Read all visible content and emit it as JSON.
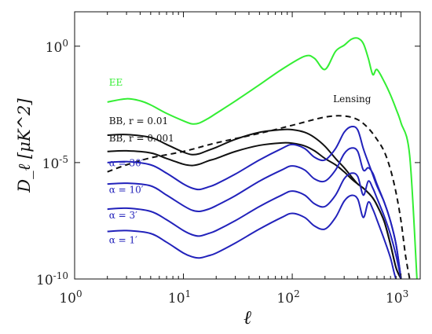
{
  "chart_data": {
    "type": "line",
    "xlabel": "ℓ",
    "ylabel": "D_ℓ [μK^2]",
    "xscale": "log",
    "yscale": "log",
    "xlim": [
      1,
      1500
    ],
    "ylim": [
      1e-10,
      30
    ],
    "grid": false,
    "x_ticks": [
      {
        "value": 1,
        "base": "10",
        "exp": "0"
      },
      {
        "value": 10,
        "base": "10",
        "exp": "1"
      },
      {
        "value": 100,
        "base": "10",
        "exp": "2"
      },
      {
        "value": 1000,
        "base": "10",
        "exp": "3"
      }
    ],
    "y_ticks": [
      {
        "value": 1,
        "base": "10",
        "exp": "0"
      },
      {
        "value": 1e-05,
        "base": "10",
        "exp": "-5"
      },
      {
        "value": 1e-10,
        "base": "10",
        "exp": "-10"
      }
    ],
    "series": [
      {
        "name": "EE",
        "color": "#33ee33",
        "style": "solid",
        "x": [
          2,
          3,
          4,
          5,
          7,
          10,
          12,
          14,
          17,
          20,
          30,
          50,
          80,
          130,
          160,
          200,
          250,
          300,
          350,
          400,
          450,
          500,
          550,
          600,
          700,
          800,
          900,
          1000,
          1200,
          1400
        ],
        "y": [
          0.004,
          0.0055,
          0.0045,
          0.003,
          0.0013,
          0.00062,
          0.00046,
          0.0005,
          0.0008,
          0.0013,
          0.0044,
          0.022,
          0.1,
          0.37,
          0.3,
          0.1,
          0.6,
          1.1,
          2,
          2.2,
          1.3,
          0.3,
          0.06,
          0.1,
          0.03,
          0.008,
          0.002,
          0.0005,
          2e-05,
          1e-10
        ]
      },
      {
        "name": "Lensing",
        "color": "#111111",
        "style": "dashed",
        "x": [
          2,
          3,
          5,
          10,
          20,
          50,
          100,
          200,
          300,
          400,
          500,
          600,
          700,
          800,
          900,
          1000,
          1100,
          1200
        ],
        "y": [
          4e-06,
          8e-06,
          1.6e-05,
          3e-05,
          7e-05,
          0.00018,
          0.0004,
          0.0009,
          0.001,
          0.0007,
          0.0003,
          0.0001,
          3e-05,
          5e-06,
          5e-07,
          3e-08,
          1e-09,
          1e-10
        ]
      },
      {
        "name": "BB, r = 0.01",
        "color": "#111111",
        "style": "solid",
        "x": [
          2,
          3,
          5,
          7,
          10,
          12,
          14,
          17,
          20,
          30,
          50,
          80,
          100,
          130,
          160,
          200,
          250,
          300,
          350,
          400,
          450,
          500,
          550,
          600,
          700,
          800,
          900,
          1000
        ],
        "y": [
          0.00015,
          0.00016,
          0.00012,
          6e-05,
          2.8e-05,
          2.2e-05,
          2.4e-05,
          3.4e-05,
          4.5e-05,
          0.0001,
          0.0002,
          0.00026,
          0.00026,
          0.0002,
          0.00012,
          5e-05,
          1.5e-05,
          6e-06,
          2.5e-06,
          1.2e-06,
          8e-07,
          5e-07,
          3e-07,
          1.5e-07,
          3e-08,
          3e-09,
          3e-10,
          1e-10
        ]
      },
      {
        "name": "BB, r = 0.001",
        "color": "#111111",
        "style": "solid",
        "x": [
          2,
          3,
          5,
          7,
          10,
          12,
          14,
          17,
          20,
          30,
          50,
          80,
          100,
          130,
          160,
          200,
          250,
          300,
          350,
          400,
          450,
          500,
          550,
          600,
          700,
          800,
          900,
          1000
        ],
        "y": [
          3e-05,
          3.2e-05,
          2.6e-05,
          1.5e-05,
          8.5e-06,
          7.5e-06,
          8.5e-06,
          1.2e-05,
          1.5e-05,
          3e-05,
          5.5e-05,
          7e-05,
          6.8e-05,
          5.2e-05,
          3.2e-05,
          1.5e-05,
          8e-06,
          4e-06,
          2e-06,
          1.2e-06,
          8e-07,
          5e-07,
          3e-07,
          1.5e-07,
          3e-08,
          3e-09,
          3e-10,
          1e-10
        ]
      },
      {
        "name": "α = 30′",
        "color": "#2222bb",
        "style": "solid",
        "x": [
          2,
          3,
          5,
          7,
          10,
          12,
          14,
          17,
          20,
          30,
          50,
          80,
          100,
          130,
          160,
          200,
          250,
          300,
          350,
          400,
          450,
          500,
          550,
          600,
          700,
          800,
          900,
          1000
        ],
        "y": [
          1e-05,
          1.1e-05,
          8e-06,
          3.5e-06,
          1.2e-06,
          8e-07,
          7e-07,
          9e-07,
          1.2e-06,
          3.2e-06,
          1.3e-05,
          4e-05,
          6e-05,
          4e-05,
          1.7e-05,
          1.3e-05,
          4e-05,
          0.0002,
          0.00035,
          0.00025,
          4e-05,
          1e-05,
          3e-06,
          1e-06,
          2e-07,
          3e-08,
          3e-09,
          1e-10
        ]
      },
      {
        "name": "α = 10′",
        "color": "#2222bb",
        "style": "solid",
        "x": [
          2,
          3,
          5,
          7,
          10,
          12,
          14,
          17,
          20,
          30,
          50,
          80,
          100,
          130,
          160,
          200,
          250,
          300,
          350,
          400,
          450,
          500,
          550,
          600,
          700,
          800,
          900,
          1000
        ],
        "y": [
          1.2e-06,
          1.3e-06,
          1e-06,
          4e-07,
          1.4e-07,
          9e-08,
          8e-08,
          1e-07,
          1.4e-07,
          3.8e-07,
          1.6e-06,
          4.8e-06,
          7.2e-06,
          4.8e-06,
          2e-06,
          1.6e-06,
          4.8e-06,
          2.4e-05,
          4.2e-05,
          3e-05,
          4.8e-06,
          6e-06,
          3.5e-06,
          1.2e-06,
          2e-07,
          3e-08,
          3e-09,
          1e-10
        ]
      },
      {
        "name": "α = 3′",
        "color": "#2222bb",
        "style": "solid",
        "x": [
          2,
          3,
          5,
          7,
          10,
          12,
          14,
          17,
          20,
          30,
          50,
          80,
          100,
          130,
          160,
          200,
          250,
          300,
          350,
          400,
          450,
          500,
          550,
          600,
          700,
          800,
          900,
          1000
        ],
        "y": [
          1e-07,
          1.1e-07,
          8e-08,
          3.5e-08,
          1.2e-08,
          8e-09,
          7e-09,
          9e-09,
          1.2e-08,
          3.2e-08,
          1.3e-07,
          4e-07,
          6e-07,
          4e-07,
          1.7e-07,
          1.3e-07,
          4e-07,
          2e-06,
          3.5e-06,
          2.5e-06,
          4e-07,
          1.6e-06,
          8e-07,
          3e-07,
          5e-08,
          8e-09,
          1e-09,
          1e-10
        ]
      },
      {
        "name": "α = 1′",
        "color": "#2222bb",
        "style": "solid",
        "x": [
          2,
          3,
          5,
          7,
          10,
          12,
          14,
          17,
          20,
          30,
          50,
          80,
          100,
          130,
          160,
          200,
          250,
          300,
          350,
          400,
          450,
          500,
          550,
          600,
          700,
          800,
          900,
          1000
        ],
        "y": [
          1.1e-08,
          1.2e-08,
          9e-09,
          3.8e-09,
          1.3e-09,
          9e-10,
          8e-10,
          1e-09,
          1.3e-09,
          3.5e-09,
          1.4e-08,
          4.4e-08,
          6.6e-08,
          4.4e-08,
          1.9e-08,
          1.4e-08,
          4.4e-08,
          2.2e-07,
          3.9e-07,
          2.7e-07,
          4.4e-08,
          2e-07,
          1e-07,
          3.5e-08,
          5e-09,
          8e-10,
          1e-10,
          1e-10
        ]
      }
    ],
    "annotations": [
      {
        "text": "EE",
        "color": "#33ee33",
        "x": 2,
        "y": 0.02
      },
      {
        "text": "Lensing",
        "color": "#111111",
        "x": 230,
        "y": 0.004
      },
      {
        "text": "BB, r = 0.01",
        "color": "#111111",
        "x": 2,
        "y": 0.00045
      },
      {
        "text": "BB, r = 0.001",
        "color": "#111111",
        "x": 2,
        "y": 8e-05
      },
      {
        "text": "α = 30′",
        "color": "#2222bb",
        "x": 2,
        "y": 7e-06
      },
      {
        "text": "α = 10′",
        "color": "#2222bb",
        "x": 2,
        "y": 5e-07
      },
      {
        "text": "α = 3′",
        "color": "#2222bb",
        "x": 2,
        "y": 4e-08
      },
      {
        "text": "α = 1′",
        "color": "#2222bb",
        "x": 2,
        "y": 3.5e-09
      }
    ]
  }
}
